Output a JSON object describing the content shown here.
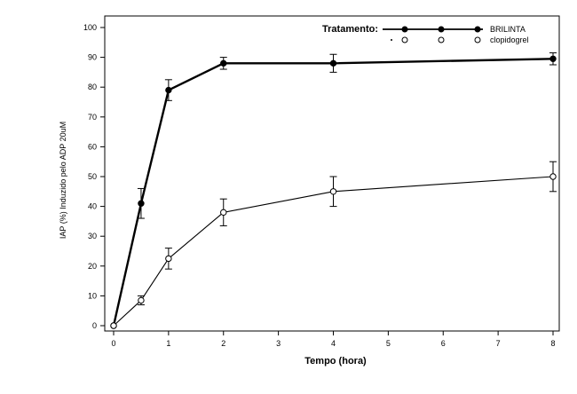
{
  "chart_data": {
    "type": "line",
    "title": "",
    "xlabel": "Tempo (hora)",
    "ylabel": "IAP (%) Induzido pelo ADP 20uM",
    "xlim": [
      0,
      8
    ],
    "ylim": [
      0,
      100
    ],
    "x_ticks": [
      0,
      1,
      2,
      3,
      4,
      5,
      6,
      7,
      8
    ],
    "y_ticks": [
      0,
      10,
      20,
      30,
      40,
      50,
      60,
      70,
      80,
      90,
      100
    ],
    "grid": false,
    "legend": {
      "title": "Tratamento:",
      "placement": "top-right"
    },
    "series": [
      {
        "name": "BRILINTA",
        "marker": "filled-circle",
        "line_weight": "bold",
        "color": "#000000",
        "x": [
          0,
          0.5,
          1,
          2,
          4,
          8
        ],
        "y": [
          0,
          41,
          79,
          88,
          88,
          89.5
        ],
        "error": [
          0,
          5,
          3.5,
          2,
          3,
          2
        ]
      },
      {
        "name": "clopidogrel",
        "marker": "open-circle",
        "line_weight": "thin",
        "color": "#000000",
        "x": [
          0,
          0.5,
          1,
          2,
          4,
          8
        ],
        "y": [
          0,
          8.5,
          22.5,
          38,
          45,
          50
        ],
        "error": [
          0,
          1.5,
          3.5,
          4.5,
          5,
          5
        ]
      }
    ]
  }
}
